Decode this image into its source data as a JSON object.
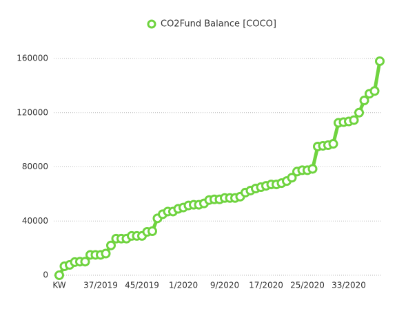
{
  "chart_data": {
    "type": "line",
    "categories": [
      "KW",
      null,
      null,
      null,
      null,
      null,
      null,
      null,
      "37/2019",
      null,
      null,
      null,
      null,
      null,
      null,
      null,
      "45/2019",
      null,
      null,
      null,
      null,
      null,
      null,
      null,
      "1/2020",
      null,
      null,
      null,
      null,
      null,
      null,
      null,
      "9/2020",
      null,
      null,
      null,
      null,
      null,
      null,
      null,
      "17/2020",
      null,
      null,
      null,
      null,
      null,
      null,
      null,
      "25/2020",
      null,
      null,
      null,
      null,
      null,
      null,
      null,
      "33/2020",
      null,
      null,
      null,
      null,
      null,
      null
    ],
    "series": [
      {
        "name": "CO2Fund Balance [COCO]",
        "color": "#6fd33f",
        "values": [
          0,
          6600,
          7600,
          9700,
          10000,
          10000,
          15000,
          15000,
          15000,
          16000,
          22000,
          27000,
          27000,
          27000,
          29000,
          29000,
          29000,
          32000,
          32500,
          42000,
          45000,
          47000,
          47000,
          49000,
          50000,
          51500,
          52000,
          52000,
          53000,
          55500,
          56000,
          56000,
          57000,
          57000,
          57000,
          58000,
          61000,
          62500,
          64000,
          65000,
          66000,
          67000,
          67000,
          68000,
          69500,
          72000,
          76500,
          77500,
          77500,
          78500,
          95000,
          95500,
          96000,
          97000,
          112500,
          113000,
          113500,
          114500,
          120000,
          129000,
          134000,
          136000,
          158000
        ]
      }
    ],
    "ylim": [
      0,
      160000
    ],
    "yticks": [
      0,
      40000,
      80000,
      120000,
      160000
    ],
    "grid": true,
    "legend": "top"
  }
}
